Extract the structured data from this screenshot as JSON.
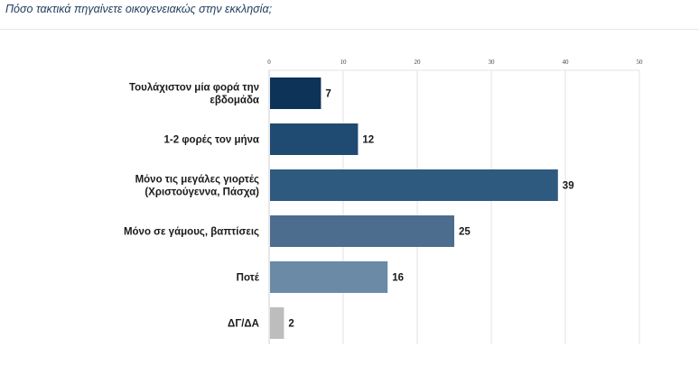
{
  "question": "Πόσο τακτικά πηγαίνετε οικογενειακώς στην εκκλησία;",
  "chart_data": {
    "type": "bar",
    "orientation": "horizontal",
    "categories": [
      [
        "Τουλάχιστον μία φορά την",
        "εβδομάδα"
      ],
      [
        "1-2 φορές τον μήνα"
      ],
      [
        "Μόνο τις μεγάλες γιορτές",
        "(Χριστούγεννα, Πάσχα)"
      ],
      [
        "Μόνο σε γάμους, βαπτίσεις"
      ],
      [
        "Ποτέ"
      ],
      [
        "ΔΓ/ΔΑ"
      ]
    ],
    "values": [
      7,
      12,
      39,
      25,
      16,
      2
    ],
    "value_labels": [
      "7",
      "12",
      "39",
      "25",
      "16",
      "2"
    ],
    "colors": [
      "#0d3358",
      "#1f4a71",
      "#2f5a80",
      "#4c6d8e",
      "#6a8aa5",
      "#bdbdbd"
    ],
    "xlim": [
      0,
      50
    ],
    "ticks": [
      0,
      10,
      20,
      30,
      40,
      50
    ],
    "tick_labels": [
      "0",
      "10",
      "20",
      "30",
      "40",
      "50"
    ],
    "axis_position": "top",
    "grid": true
  }
}
